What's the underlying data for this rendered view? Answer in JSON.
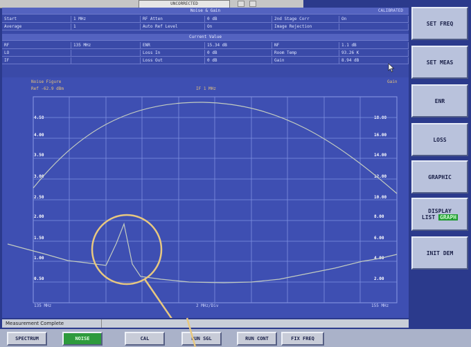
{
  "top_dialog": {
    "label": "UNCORRECTED"
  },
  "header": {
    "title_band": "Noise & Gain",
    "calibrated": "CALIBRATED",
    "row1": [
      {
        "label": "Start",
        "value": "1 MHz"
      },
      {
        "label": "RF Atten",
        "value": "0 dB"
      },
      {
        "label": "2nd Stage Corr",
        "value": "On"
      }
    ],
    "row2": [
      {
        "label": "Average",
        "value": "1"
      },
      {
        "label": "Auto Ref Level",
        "value": "On"
      },
      {
        "label": "Image Rejection",
        "value": ""
      }
    ],
    "band2": "Current Value",
    "row3": [
      {
        "label": "RF",
        "value": "135 MHz"
      },
      {
        "label": "ENR",
        "value": "15.34 dB"
      },
      {
        "label": "NF",
        "value": "1.1 dB"
      }
    ],
    "row4": [
      {
        "label": "LO",
        "value": ""
      },
      {
        "label": "Loss In",
        "value": "0 dB"
      },
      {
        "label": "Room Temp",
        "value": "93.26 K"
      }
    ],
    "row5": [
      {
        "label": "IF",
        "value": ""
      },
      {
        "label": "Loss Out",
        "value": "0 dB"
      },
      {
        "label": "Gain",
        "value": "8.94 dB"
      }
    ]
  },
  "plot": {
    "trace1_label": "Noise Figure",
    "trace2_label": "Gain",
    "ref_label": "Ref -62.9 dBm",
    "rbw_label": "IF 1 MHz",
    "y_left": [
      "4.50",
      "4.00",
      "3.50",
      "3.00",
      "2.50",
      "2.00",
      "1.50",
      "1.00",
      "0.50"
    ],
    "y_right": [
      "18.00",
      "16.00",
      "14.00",
      "12.00",
      "10.00",
      "8.00",
      "6.00",
      "4.00",
      "2.00"
    ],
    "x_start": "135 MHz",
    "x_center": "2 MHz/Div",
    "x_stop": "155 MHz"
  },
  "softkeys": [
    "SET FREQ",
    "SET MEAS",
    "ENR",
    "LOSS",
    "GRAPHIC"
  ],
  "display_key": {
    "title": "DISPLAY",
    "opt1": "LIST",
    "opt2": "GRAPH"
  },
  "init_key": "INIT DEM",
  "status": "Measurement Complete",
  "bottom_buttons": [
    "SPECTRUM",
    "NOISE",
    "CAL",
    "RUN SGL",
    "RUN CONT",
    "FIX FREQ"
  ],
  "colors": {
    "background": "#2b3a8c",
    "grid": "#7f90e0",
    "trace": "#c8d0c8",
    "annotation": "#e8c880",
    "active": "#2e9a3d"
  }
}
